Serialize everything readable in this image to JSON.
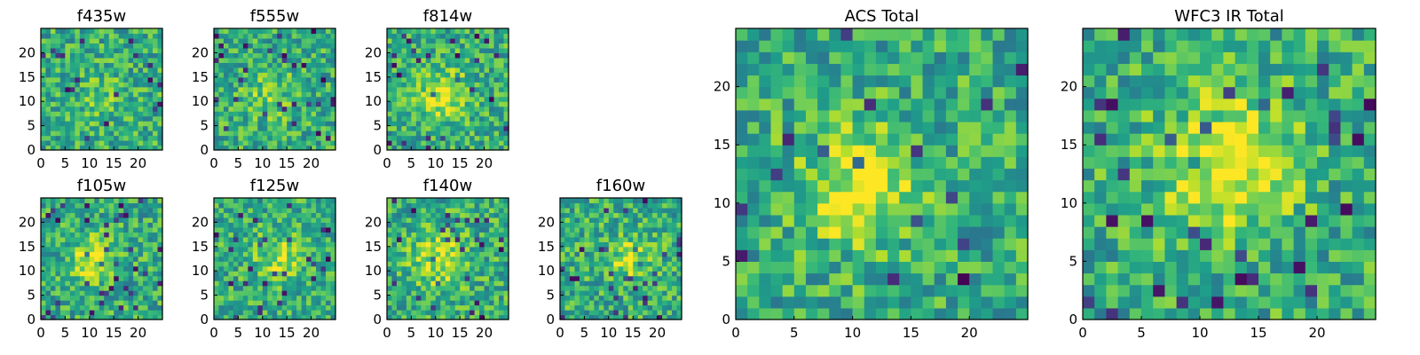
{
  "colors": {
    "colormap": "viridis",
    "bright": "#fde725",
    "mid": "#21908d",
    "dark": "#440154"
  },
  "chart_data": [
    {
      "type": "heatmap",
      "title": "f435w",
      "xticks": [
        0,
        5,
        10,
        15,
        20
      ],
      "yticks": [
        0,
        5,
        10,
        15,
        20
      ],
      "xlim": [
        0,
        25
      ],
      "ylim": [
        0,
        25
      ],
      "grid": false,
      "blob": {
        "x": 12,
        "y": 10,
        "r": 4,
        "amp": 0.1
      }
    },
    {
      "type": "heatmap",
      "title": "f555w",
      "xticks": [
        0,
        5,
        10,
        15,
        20
      ],
      "yticks": [
        0,
        5,
        10,
        15,
        20
      ],
      "xlim": [
        0,
        25
      ],
      "ylim": [
        0,
        25
      ],
      "grid": false,
      "blob": {
        "x": 11,
        "y": 11,
        "r": 4,
        "amp": 0.15
      }
    },
    {
      "type": "heatmap",
      "title": "f814w",
      "xticks": [
        0,
        5,
        10,
        15,
        20
      ],
      "yticks": [
        0,
        5,
        10,
        15,
        20
      ],
      "xlim": [
        0,
        25
      ],
      "ylim": [
        0,
        25
      ],
      "grid": false,
      "blob": {
        "x": 11,
        "y": 11,
        "r": 3.5,
        "amp": 0.35
      }
    },
    {
      "type": "heatmap",
      "title": "f105w",
      "xticks": [
        0,
        5,
        10,
        15,
        20
      ],
      "yticks": [
        0,
        5,
        10,
        15,
        20
      ],
      "xlim": [
        0,
        25
      ],
      "ylim": [
        0,
        25
      ],
      "grid": false,
      "blob": {
        "x": 10,
        "y": 12,
        "r": 3,
        "amp": 0.35
      }
    },
    {
      "type": "heatmap",
      "title": "f125w",
      "xticks": [
        0,
        5,
        10,
        15,
        20
      ],
      "yticks": [
        0,
        5,
        10,
        15,
        20
      ],
      "xlim": [
        0,
        25
      ],
      "ylim": [
        0,
        25
      ],
      "grid": false,
      "blob": {
        "x": 13,
        "y": 12,
        "r": 3.5,
        "amp": 0.25
      }
    },
    {
      "type": "heatmap",
      "title": "f140w",
      "xticks": [
        0,
        5,
        10,
        15,
        20
      ],
      "yticks": [
        0,
        5,
        10,
        15,
        20
      ],
      "xlim": [
        0,
        25
      ],
      "ylim": [
        0,
        25
      ],
      "grid": false,
      "blob": {
        "x": 10,
        "y": 12,
        "r": 4,
        "amp": 0.3
      }
    },
    {
      "type": "heatmap",
      "title": "f160w",
      "xticks": [
        0,
        5,
        10,
        15,
        20
      ],
      "yticks": [
        0,
        5,
        10,
        15,
        20
      ],
      "xlim": [
        0,
        25
      ],
      "ylim": [
        0,
        25
      ],
      "grid": false,
      "blob": {
        "x": 14,
        "y": 12,
        "r": 3.5,
        "amp": 0.25
      }
    },
    {
      "type": "heatmap",
      "title": "ACS Total",
      "xticks": [
        0,
        5,
        10,
        15,
        20
      ],
      "yticks": [
        0,
        5,
        10,
        15,
        20
      ],
      "xlim": [
        0,
        25
      ],
      "ylim": [
        0,
        25
      ],
      "grid": false,
      "blob": {
        "x": 10,
        "y": 11,
        "r": 3.5,
        "amp": 0.35
      }
    },
    {
      "type": "heatmap",
      "title": "WFC3 IR Total",
      "xticks": [
        0,
        5,
        10,
        15,
        20
      ],
      "yticks": [
        0,
        5,
        10,
        15,
        20
      ],
      "xlim": [
        0,
        25
      ],
      "ylim": [
        0,
        25
      ],
      "grid": false,
      "blob": {
        "x": 12,
        "y": 13,
        "r": 4,
        "amp": 0.4
      }
    }
  ]
}
